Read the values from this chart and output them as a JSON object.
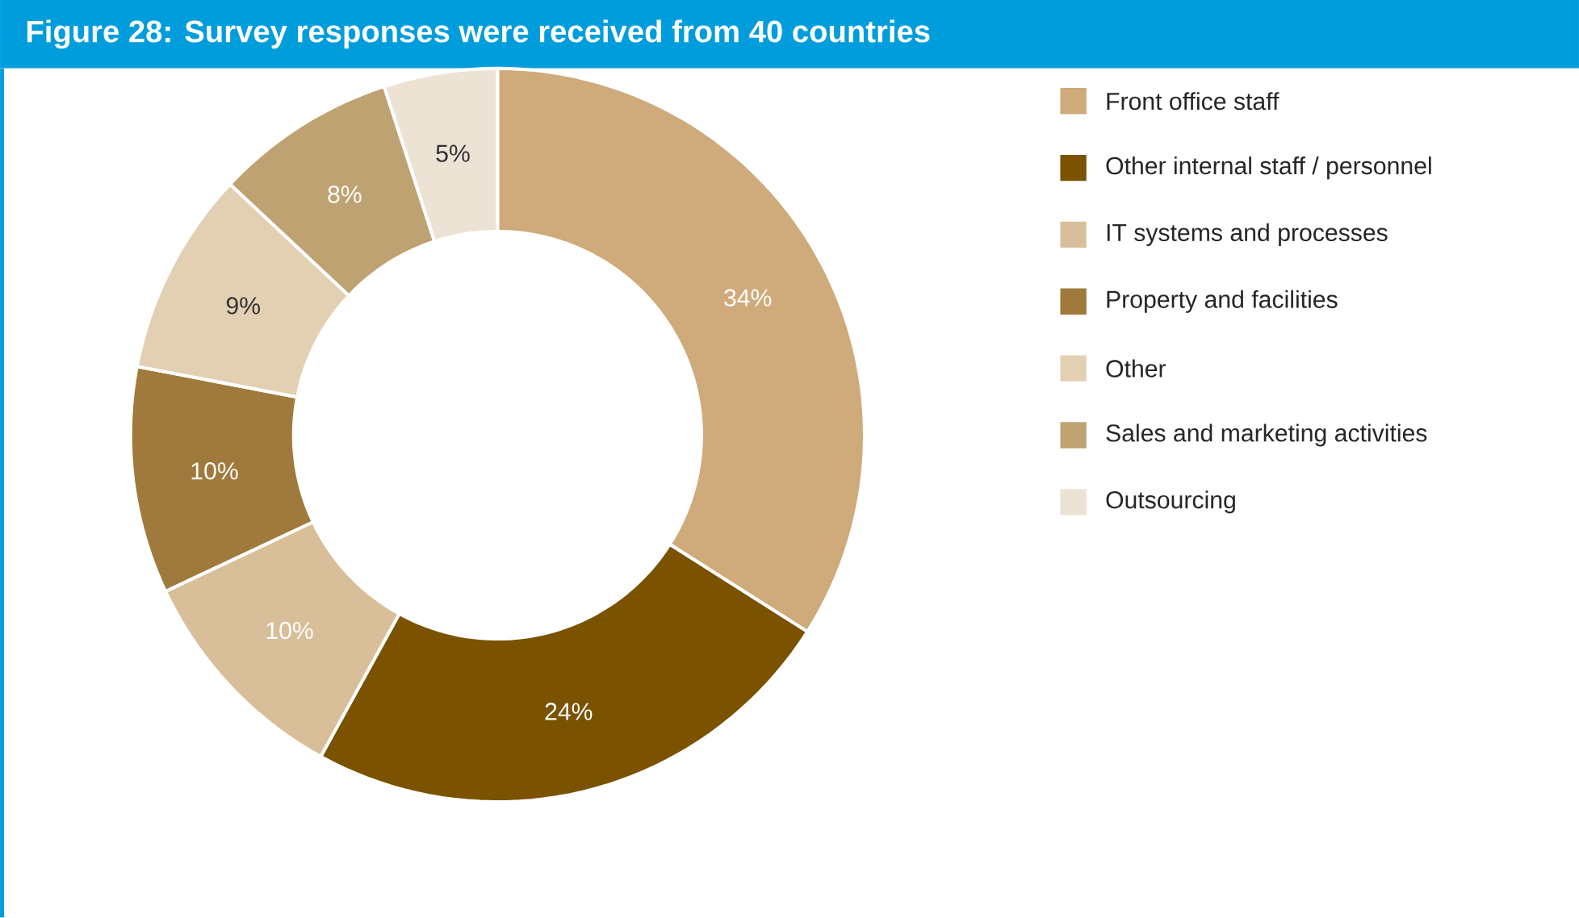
{
  "chart_data": {
    "type": "donut",
    "title": "Figure 28: Survey responses were received from 40 countries",
    "categories": [
      "Front office staff",
      "Other internal staff / personnel",
      "IT systems and processes",
      "Property and facilities",
      "Other",
      "Sales and marketing activities",
      "Outsourcing"
    ],
    "values": [
      34,
      24,
      10,
      10,
      9,
      8,
      5
    ],
    "value_labels": [
      "34%",
      "24%",
      "10%",
      "10%",
      "9%",
      "8%",
      "5%"
    ],
    "colors": [
      "#cfaa7a",
      "#7a5200",
      "#d9bf99",
      "#a07a3c",
      "#e3d0b3",
      "#bfa272",
      "#ede3d5"
    ],
    "legend": "right"
  }
}
